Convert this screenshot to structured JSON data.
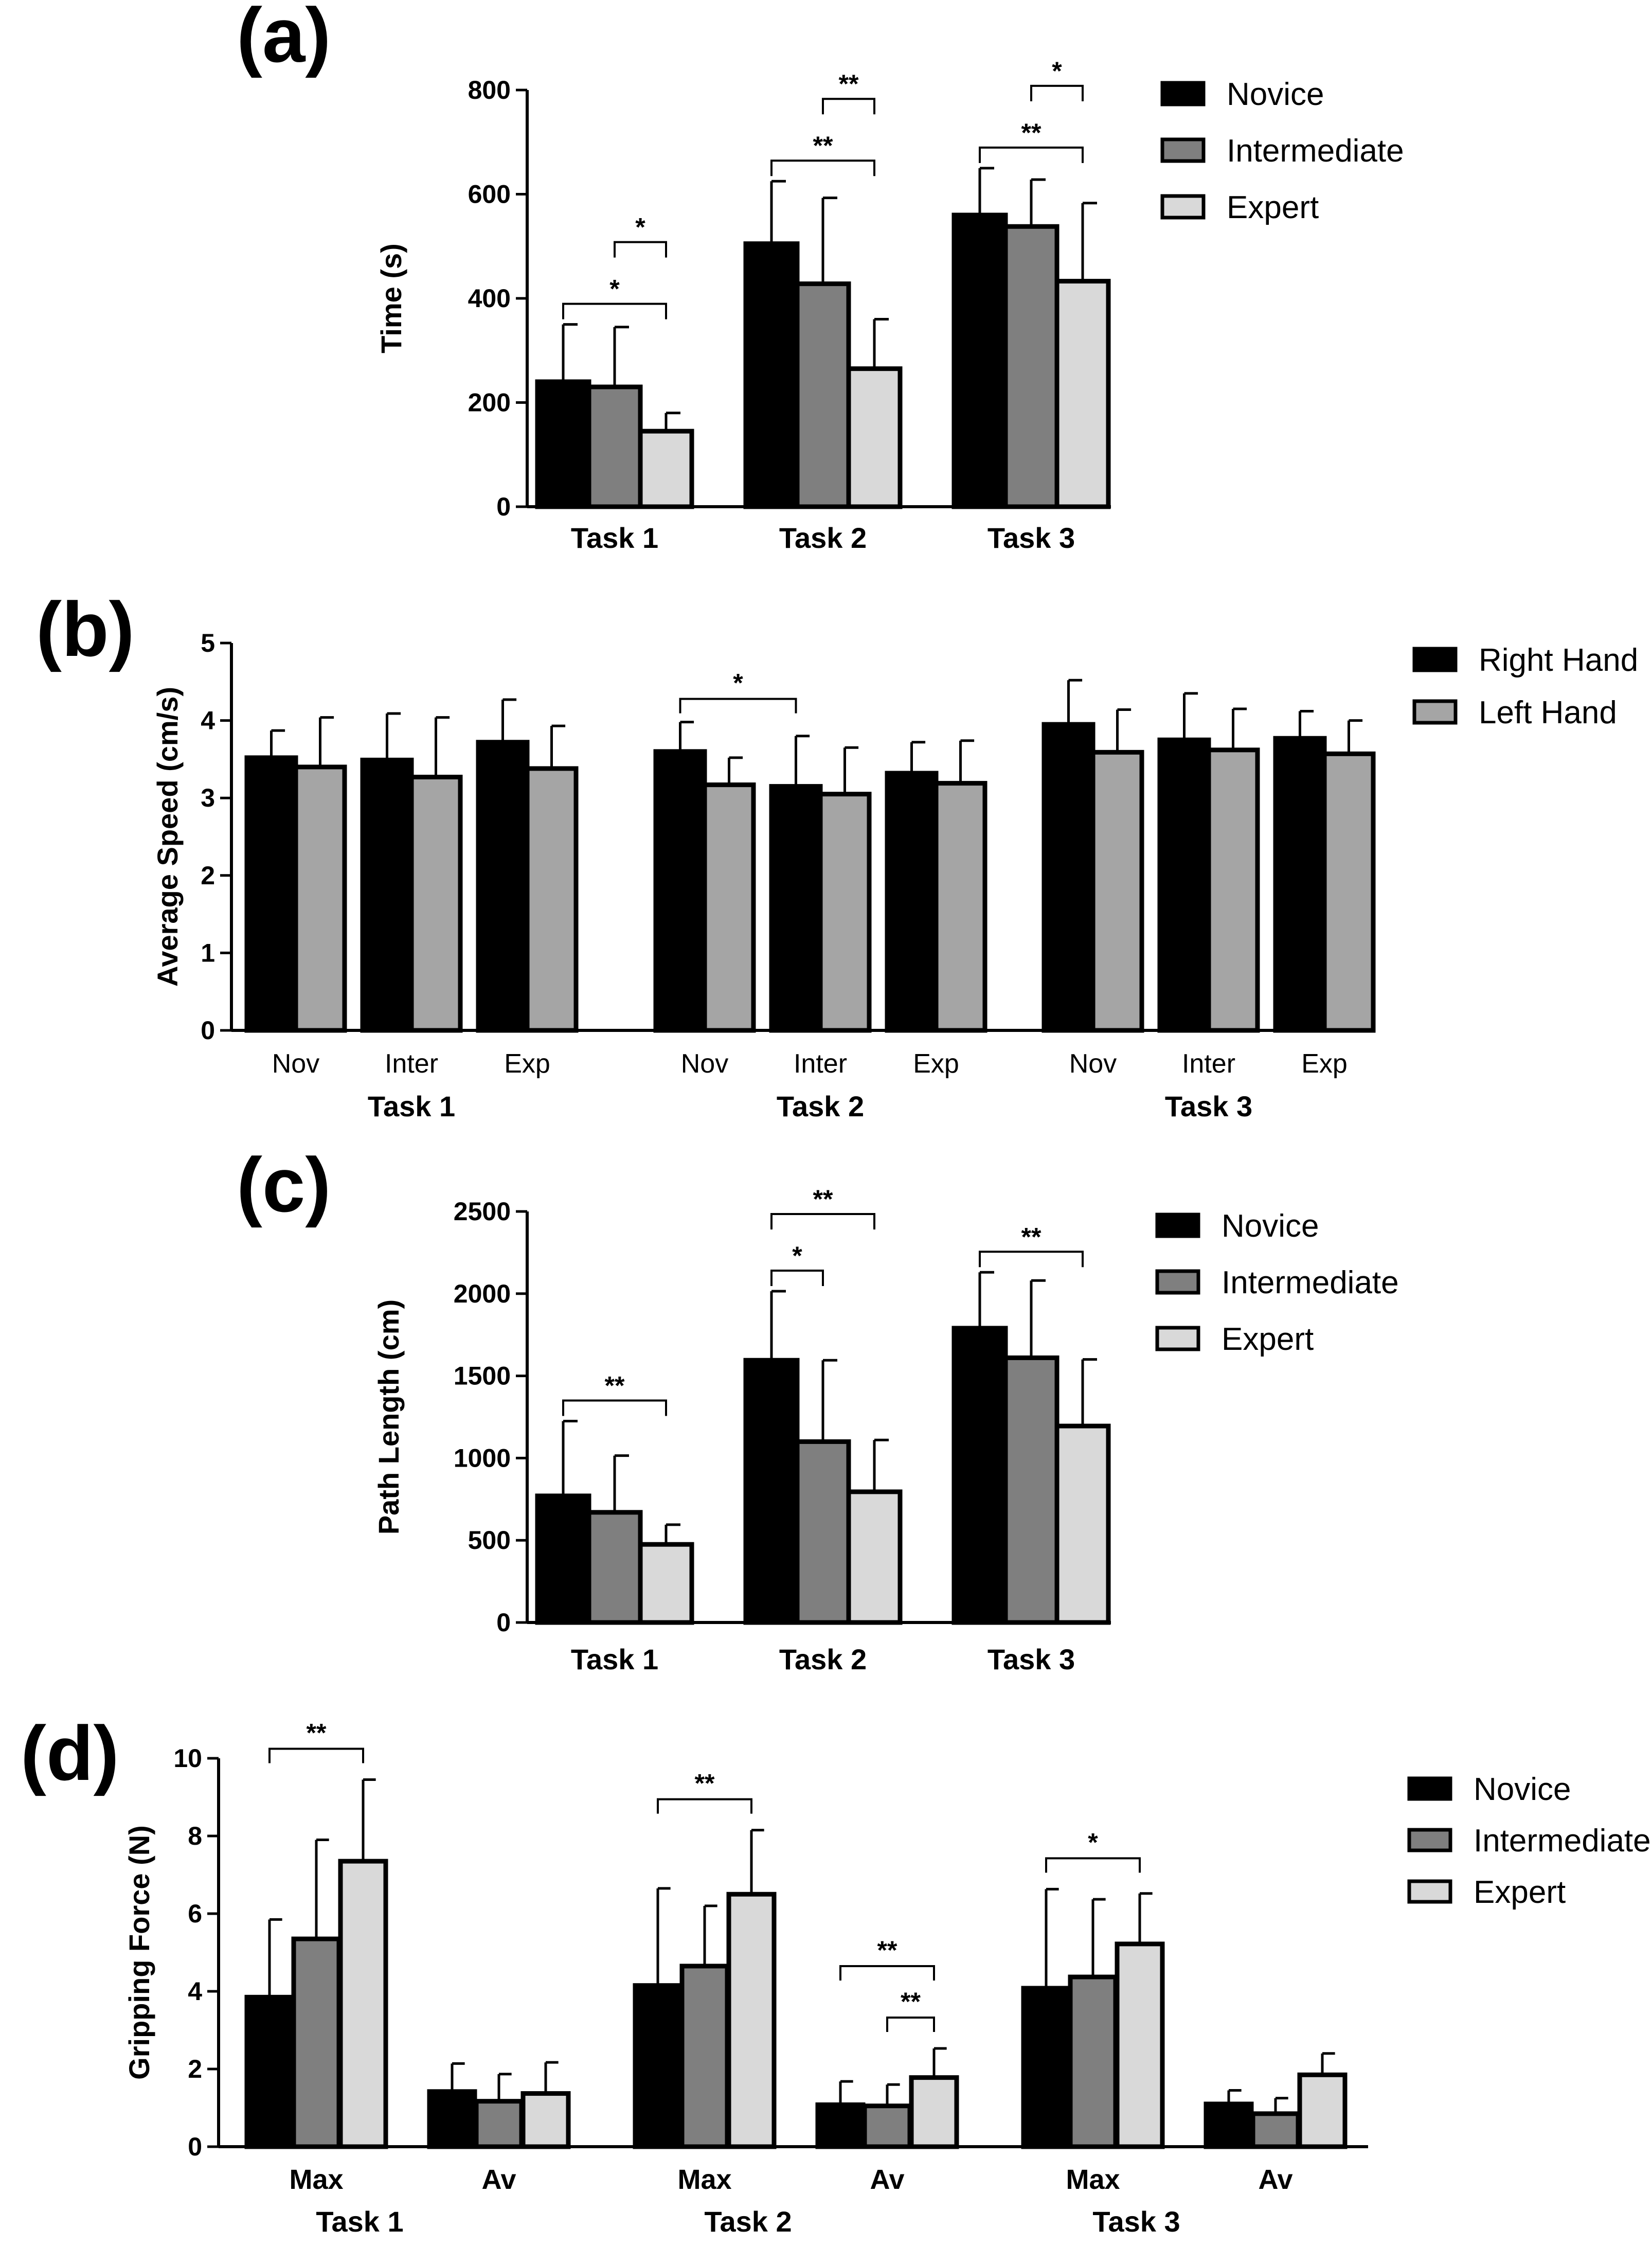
{
  "chart_data": [
    {
      "panel": "(a)",
      "type": "bar",
      "ylabel": "Time (s)",
      "ylim": [
        0,
        800
      ],
      "yticks": [
        "0",
        "200",
        "400",
        "600",
        "800"
      ],
      "categories": [
        "Task 1",
        "Task 2",
        "Task 3"
      ],
      "series": [
        {
          "name": "Novice",
          "color": "#000000",
          "values": [
            240,
            505,
            560
          ],
          "errors": [
            110,
            120,
            90
          ]
        },
        {
          "name": "Intermediate",
          "color": "#7f7f7f",
          "values": [
            230,
            428,
            538
          ],
          "errors": [
            115,
            165,
            90
          ]
        },
        {
          "name": "Expert",
          "color": "#d9d9d9",
          "values": [
            145,
            265,
            433
          ],
          "errors": [
            35,
            95,
            150
          ]
        }
      ],
      "significance": [
        {
          "label": "*",
          "group": 0,
          "from": 0,
          "to": 2,
          "level": 0
        },
        {
          "label": "*",
          "group": 0,
          "from": 1,
          "to": 2,
          "level": 1
        },
        {
          "label": "**",
          "group": 1,
          "from": 0,
          "to": 2,
          "level": 0
        },
        {
          "label": "**",
          "group": 1,
          "from": 1,
          "to": 2,
          "level": 1
        },
        {
          "label": "**",
          "group": 2,
          "from": 0,
          "to": 2,
          "level": 0
        },
        {
          "label": "*",
          "group": 2,
          "from": 1,
          "to": 2,
          "level": 1
        }
      ],
      "legend_position": "top-right"
    },
    {
      "panel": "(b)",
      "type": "bar",
      "ylabel": "Average  Speed (cm/s)",
      "ylim": [
        0,
        5
      ],
      "yticks": [
        "0",
        "1",
        "2",
        "3",
        "4",
        "5"
      ],
      "groups": [
        "Task 1",
        "Task 2",
        "Task 3"
      ],
      "subcategories": [
        "Nov",
        "Inter",
        "Exp"
      ],
      "series": [
        {
          "name": "Right Hand",
          "color": "#000000",
          "values": [
            [
              3.52,
              3.49,
              3.72
            ],
            [
              3.6,
              3.15,
              3.32
            ],
            [
              3.95,
              3.75,
              3.77
            ]
          ],
          "errors": [
            [
              0.35,
              0.6,
              0.55
            ],
            [
              0.38,
              0.65,
              0.4
            ],
            [
              0.57,
              0.6,
              0.35
            ]
          ]
        },
        {
          "name": "Left Hand",
          "color": "#a5a5a5",
          "values": [
            [
              3.4,
              3.27,
              3.38
            ],
            [
              3.17,
              3.05,
              3.19
            ],
            [
              3.59,
              3.62,
              3.57
            ]
          ],
          "errors": [
            [
              0.64,
              0.77,
              0.55
            ],
            [
              0.35,
              0.6,
              0.55
            ],
            [
              0.55,
              0.53,
              0.43
            ]
          ]
        }
      ],
      "significance": [
        {
          "label": "*",
          "group": 1,
          "from_sub": 0,
          "to_sub": 1
        }
      ],
      "legend_position": "top-right"
    },
    {
      "panel": "(c)",
      "type": "bar",
      "ylabel": "Path  Length (cm)",
      "ylim": [
        0,
        2500
      ],
      "yticks": [
        "0",
        "500",
        "1000",
        "1500",
        "2000",
        "2500"
      ],
      "categories": [
        "Task 1",
        "Task 2",
        "Task 3"
      ],
      "series": [
        {
          "name": "Novice",
          "color": "#000000",
          "values": [
            770,
            1595,
            1790
          ],
          "errors": [
            455,
            420,
            340
          ]
        },
        {
          "name": "Intermediate",
          "color": "#7f7f7f",
          "values": [
            670,
            1100,
            1610
          ],
          "errors": [
            345,
            495,
            470
          ]
        },
        {
          "name": "Expert",
          "color": "#d9d9d9",
          "values": [
            475,
            795,
            1195
          ],
          "errors": [
            120,
            315,
            405
          ]
        }
      ],
      "significance": [
        {
          "label": "**",
          "group": 0,
          "from": 0,
          "to": 2,
          "level": 0
        },
        {
          "label": "**",
          "group": 1,
          "from": 0,
          "to": 2,
          "level": 1
        },
        {
          "label": "*",
          "group": 1,
          "from": 0,
          "to": 1,
          "level": 0
        },
        {
          "label": "**",
          "group": 2,
          "from": 0,
          "to": 2,
          "level": 0
        }
      ],
      "legend_position": "top-right"
    },
    {
      "panel": "(d)",
      "type": "bar",
      "ylabel": "Gripping Force (N)",
      "ylim": [
        0,
        10
      ],
      "yticks": [
        "0",
        "2",
        "4",
        "6",
        "8",
        "10"
      ],
      "groups": [
        "Task 1",
        "Task 2",
        "Task 3"
      ],
      "subcategories": [
        "Max",
        "Av"
      ],
      "series": [
        {
          "name": "Novice",
          "color": "#000000",
          "values": [
            [
              3.85,
              1.42
            ],
            [
              4.15,
              1.08
            ],
            [
              4.08,
              1.1
            ]
          ],
          "errors": [
            [
              2.0,
              0.72
            ],
            [
              2.5,
              0.6
            ],
            [
              2.55,
              0.35
            ]
          ]
        },
        {
          "name": "Intermediate",
          "color": "#7f7f7f",
          "values": [
            [
              5.35,
              1.17
            ],
            [
              4.65,
              1.05
            ],
            [
              4.37,
              0.85
            ]
          ],
          "errors": [
            [
              2.55,
              0.7
            ],
            [
              1.55,
              0.55
            ],
            [
              2.0,
              0.4
            ]
          ]
        },
        {
          "name": "Expert",
          "color": "#d9d9d9",
          "values": [
            [
              7.35,
              1.37
            ],
            [
              6.5,
              1.78
            ],
            [
              5.22,
              1.85
            ]
          ],
          "errors": [
            [
              2.1,
              0.8
            ],
            [
              1.65,
              0.75
            ],
            [
              1.3,
              0.55
            ]
          ]
        }
      ],
      "significance": [
        {
          "label": "**",
          "group": 0,
          "sub": 0,
          "from": 0,
          "to": 2,
          "level": 0
        },
        {
          "label": "**",
          "group": 1,
          "sub": 0,
          "from": 0,
          "to": 2,
          "level": 0
        },
        {
          "label": "**",
          "group": 1,
          "sub": 1,
          "from": 0,
          "to": 2,
          "level": 1
        },
        {
          "label": "**",
          "group": 1,
          "sub": 1,
          "from": 1,
          "to": 2,
          "level": 0
        },
        {
          "label": "*",
          "group": 2,
          "sub": 0,
          "from": 0,
          "to": 2,
          "level": 0
        }
      ],
      "legend_position": "top-right"
    }
  ]
}
